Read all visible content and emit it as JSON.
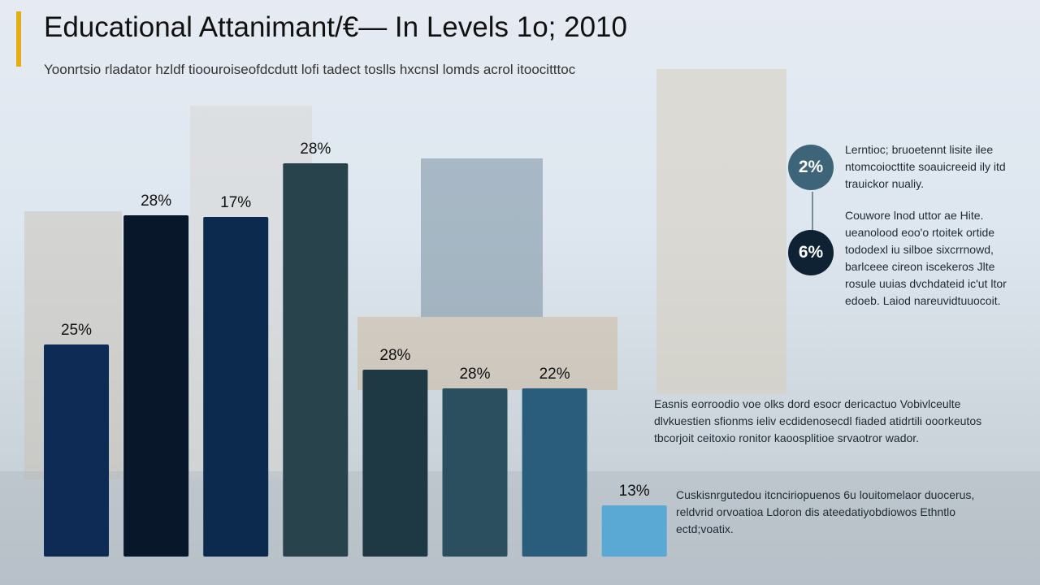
{
  "header": {
    "title": "Educational Attanimant/€— In Levels 1o; 2010",
    "subtitle": "Yoonrtsio rladator hzldf tioouroiseofdcdutt lofi tadect toslls hxcnsl lomds acrol itoocitttoc"
  },
  "colors": {
    "accent": "#e3ad18",
    "circle_1": "#3d6478",
    "circle_2": "#0f2233"
  },
  "chart_data": {
    "type": "bar",
    "title": "Educational Attanimant/€— In Levels 1o; 2010",
    "data_labels": [
      "25%",
      "28%",
      "17%",
      "28%",
      "28%",
      "28%",
      "22%",
      "13%"
    ],
    "values": [
      25,
      28,
      17,
      28,
      28,
      28,
      22,
      13
    ],
    "colors": [
      "#0e2b56",
      "#08182a",
      "#0c2a4e",
      "#29434c",
      "#1e3844",
      "#2b4f5f",
      "#2a5c7c",
      "#5aa8d4"
    ],
    "grid": false,
    "legend": "none"
  },
  "callouts": [
    {
      "value": "2%",
      "text": "Lerntioc; bruoetennt lisite ilee ntomcoiocttite soauicreeid ily itd trauickor nualiy."
    },
    {
      "value": "6%",
      "text": "Couwore lnod uttor ae Hite. ueanolood eoo'o rtoitek ortide tododexl iu silboe sixcrrnowd, barlceee cireon iscekeros Jlte rosule uuias dvchdateid ic'ut ltor edoeb. Laiod nareuvidtuuocoit."
    }
  ],
  "notes": [
    "Easnis eorroodio voe olks dord esocr dericactuo Vobivlceulte dlvkuestien sfionms ieliv ecdidenosecdl fiaded atidrtili ooorkeutos tbcorjoit ceitoxio ronitor kaoosplitioe srvaotror wador.",
    "Cuskisnrgutedou itcnciriopuenos 6u louitomelaor duocerus, reldvrid orvoatioa Ldoron dis ateedatiyobdiowos Ethntlo ectd;voatix."
  ]
}
